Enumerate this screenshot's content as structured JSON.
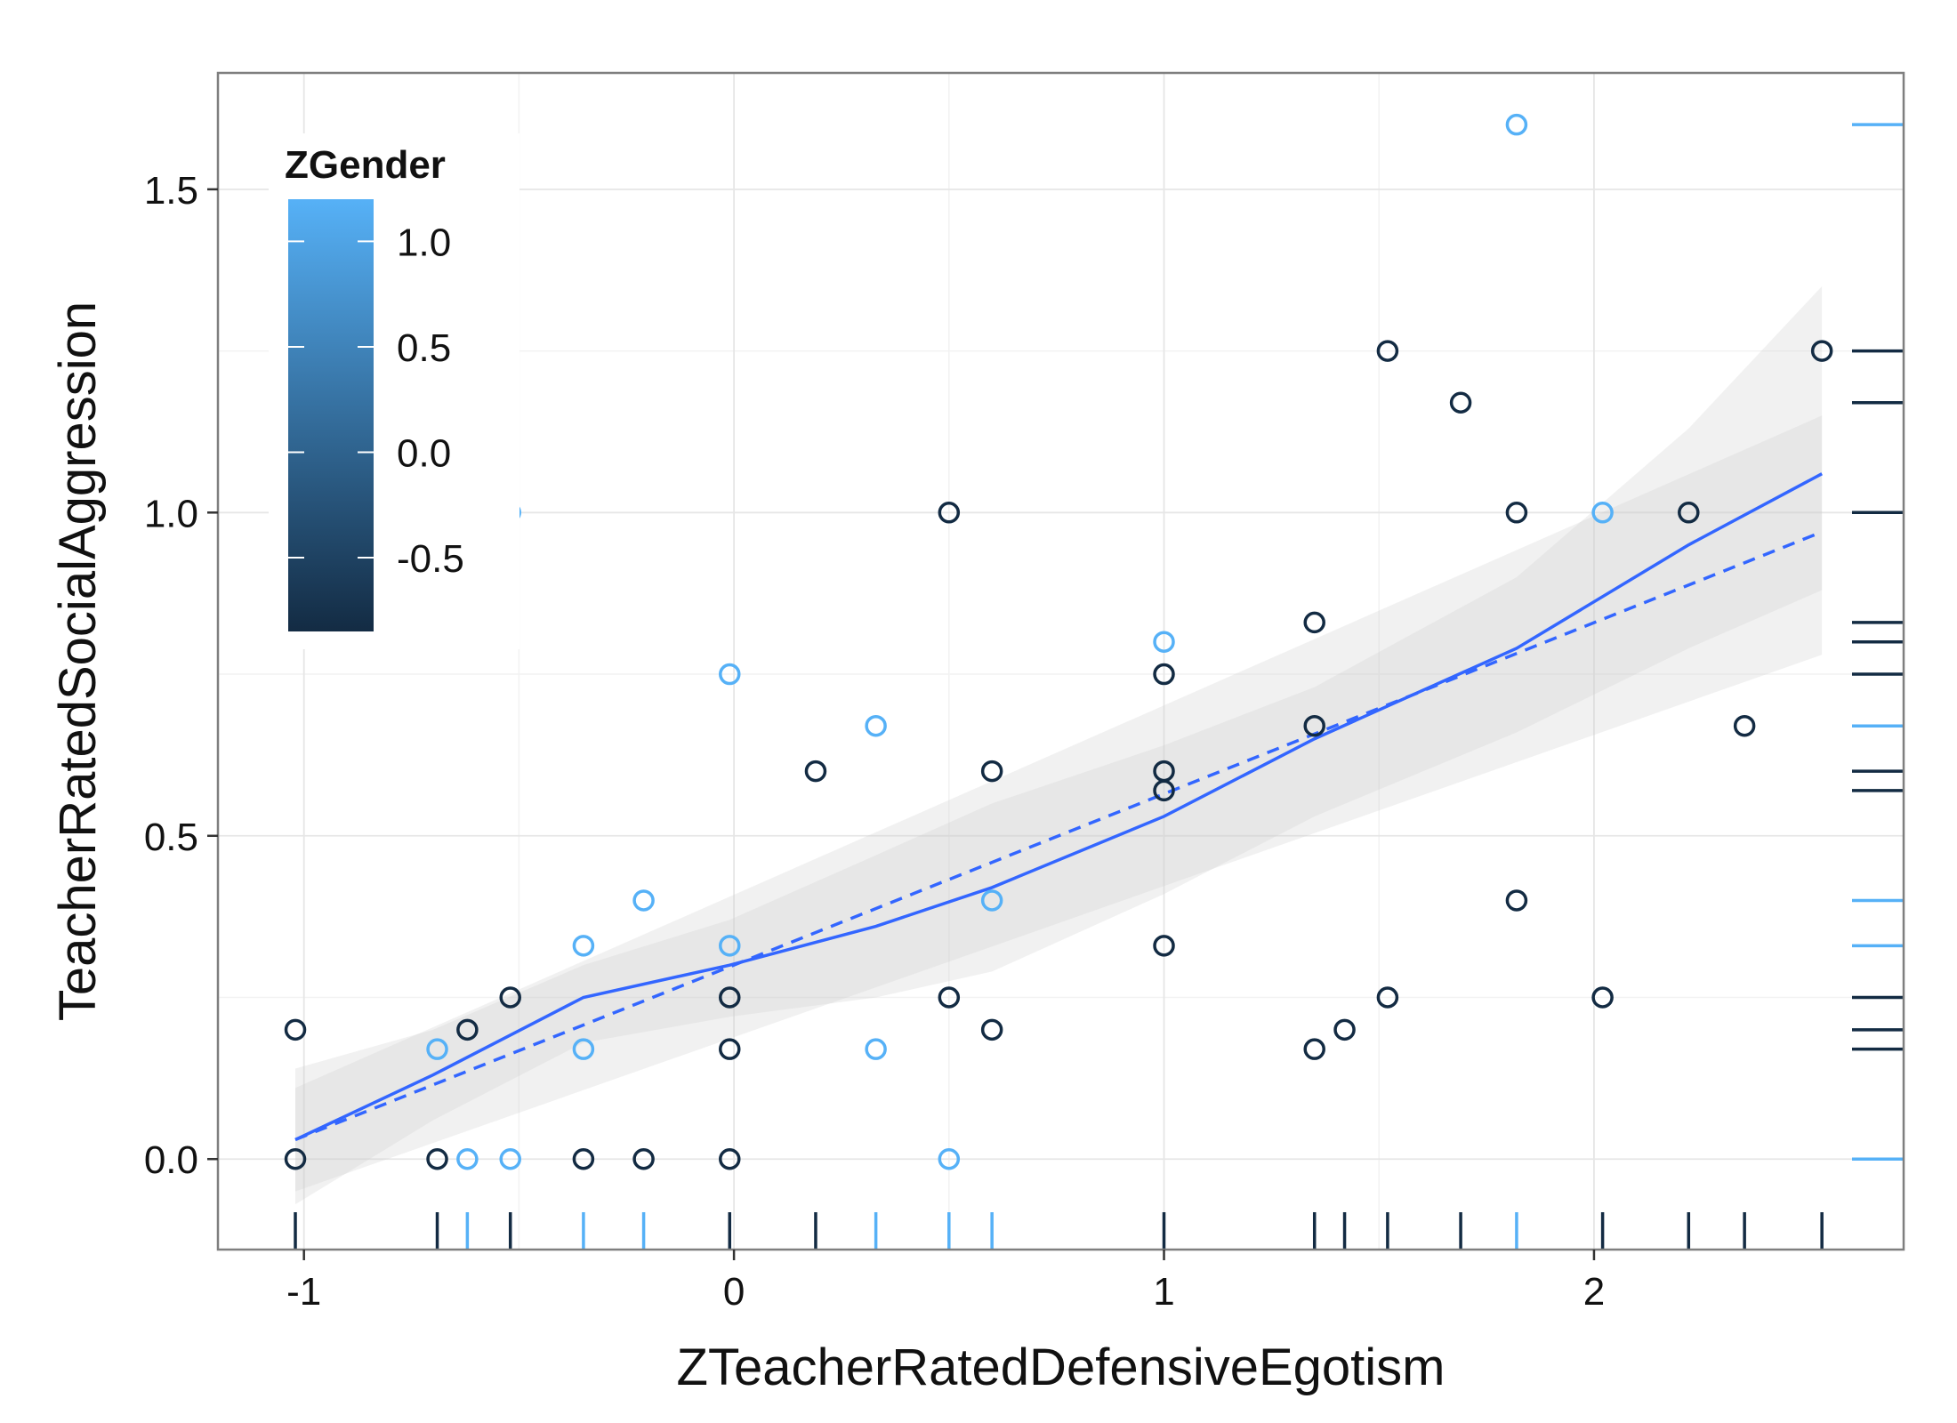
{
  "chart_data": {
    "type": "scatter",
    "title": "",
    "xlabel": "ZTeacherRatedDefensiveEgotism",
    "ylabel": "TeacherRatedSocialAggression",
    "xlim": [
      -1.2,
      2.72
    ],
    "ylim": [
      -0.14,
      1.68
    ],
    "grid": true,
    "x_ticks": [
      -1,
      0,
      1,
      2
    ],
    "x_tick_labels": [
      "-1",
      "0",
      "1",
      "2"
    ],
    "y_ticks": [
      0.0,
      0.5,
      1.0,
      1.5
    ],
    "y_tick_labels": [
      "0.0",
      "0.5",
      "1.0",
      "1.5"
    ],
    "legend": {
      "title": "ZGender",
      "placement": "top-left",
      "type": "colorbar",
      "range": [
        -0.85,
        1.2
      ],
      "breaks": [
        1.0,
        0.5,
        0.0,
        -0.5
      ],
      "break_labels": [
        "1.0",
        "0.5",
        "0.0",
        "-0.5"
      ],
      "low_color": "#132b43",
      "high_color": "#56b1f7"
    },
    "points": [
      {
        "x": -1.02,
        "y": 0.2,
        "z": -0.85
      },
      {
        "x": -1.02,
        "y": 0.0,
        "z": -0.85
      },
      {
        "x": -0.69,
        "y": 0.0,
        "z": -0.85
      },
      {
        "x": -0.69,
        "y": 0.17,
        "z": 1.2
      },
      {
        "x": -0.62,
        "y": 0.2,
        "z": -0.85
      },
      {
        "x": -0.62,
        "y": 0.0,
        "z": 1.2
      },
      {
        "x": -0.52,
        "y": 1.0,
        "z": 1.2
      },
      {
        "x": -0.52,
        "y": 0.25,
        "z": -0.85
      },
      {
        "x": -0.52,
        "y": 0.0,
        "z": 1.2
      },
      {
        "x": -0.35,
        "y": 0.33,
        "z": 1.2
      },
      {
        "x": -0.35,
        "y": 0.17,
        "z": 1.2
      },
      {
        "x": -0.35,
        "y": 0.0,
        "z": -0.85
      },
      {
        "x": -0.21,
        "y": 0.4,
        "z": 1.2
      },
      {
        "x": -0.21,
        "y": 0.0,
        "z": -0.85
      },
      {
        "x": -0.01,
        "y": 0.75,
        "z": 1.2
      },
      {
        "x": -0.01,
        "y": 0.33,
        "z": 1.2
      },
      {
        "x": -0.01,
        "y": 0.25,
        "z": -0.85
      },
      {
        "x": -0.01,
        "y": 0.17,
        "z": -0.85
      },
      {
        "x": -0.01,
        "y": 0.0,
        "z": -0.85
      },
      {
        "x": 0.19,
        "y": 0.6,
        "z": -0.85
      },
      {
        "x": 0.33,
        "y": 0.67,
        "z": 1.2
      },
      {
        "x": 0.33,
        "y": 0.17,
        "z": 1.2
      },
      {
        "x": 0.5,
        "y": 1.0,
        "z": -0.85
      },
      {
        "x": 0.5,
        "y": 0.25,
        "z": -0.85
      },
      {
        "x": 0.5,
        "y": 0.0,
        "z": 1.2
      },
      {
        "x": 0.6,
        "y": 0.6,
        "z": -0.85
      },
      {
        "x": 0.6,
        "y": 0.4,
        "z": 1.2
      },
      {
        "x": 0.6,
        "y": 0.2,
        "z": -0.85
      },
      {
        "x": 1.0,
        "y": 0.8,
        "z": 1.2
      },
      {
        "x": 1.0,
        "y": 0.75,
        "z": -0.85
      },
      {
        "x": 1.0,
        "y": 0.6,
        "z": -0.85
      },
      {
        "x": 1.0,
        "y": 0.57,
        "z": -0.85
      },
      {
        "x": 1.0,
        "y": 0.33,
        "z": -0.85
      },
      {
        "x": 1.35,
        "y": 0.83,
        "z": -0.85
      },
      {
        "x": 1.35,
        "y": 0.67,
        "z": -0.85
      },
      {
        "x": 1.35,
        "y": 0.17,
        "z": -0.85
      },
      {
        "x": 1.42,
        "y": 0.2,
        "z": -0.85
      },
      {
        "x": 1.52,
        "y": 1.25,
        "z": -0.85
      },
      {
        "x": 1.52,
        "y": 0.25,
        "z": -0.85
      },
      {
        "x": 1.69,
        "y": 1.17,
        "z": -0.85
      },
      {
        "x": 1.82,
        "y": 1.6,
        "z": 1.2
      },
      {
        "x": 1.82,
        "y": 1.0,
        "z": -0.85
      },
      {
        "x": 1.82,
        "y": 0.4,
        "z": -0.85
      },
      {
        "x": 2.02,
        "y": 1.0,
        "z": 1.2
      },
      {
        "x": 2.02,
        "y": 0.25,
        "z": -0.85
      },
      {
        "x": 2.22,
        "y": 1.0,
        "z": -0.85
      },
      {
        "x": 2.35,
        "y": 0.67,
        "z": -0.85
      },
      {
        "x": 2.53,
        "y": 1.25,
        "z": -0.85
      }
    ],
    "smooth_lines": [
      {
        "style": "solid",
        "x": [
          -1.02,
          -0.7,
          -0.35,
          -0.01,
          0.33,
          0.6,
          1.0,
          1.35,
          1.82,
          2.22,
          2.53
        ],
        "y": [
          0.03,
          0.13,
          0.25,
          0.3,
          0.36,
          0.42,
          0.53,
          0.65,
          0.79,
          0.95,
          1.06
        ]
      },
      {
        "style": "dashed",
        "x": [
          -1.02,
          2.53
        ],
        "y": [
          0.03,
          0.97
        ]
      }
    ],
    "confidence_bands": [
      {
        "x": [
          -1.02,
          -0.7,
          -0.35,
          -0.01,
          0.33,
          0.6,
          1.0,
          1.35,
          1.82,
          2.22,
          2.53
        ],
        "lower": [
          -0.07,
          0.06,
          0.18,
          0.22,
          0.25,
          0.29,
          0.41,
          0.53,
          0.66,
          0.79,
          0.88
        ],
        "upper": [
          0.14,
          0.2,
          0.3,
          0.37,
          0.47,
          0.55,
          0.64,
          0.73,
          0.9,
          1.13,
          1.35
        ]
      },
      {
        "x": [
          -1.02,
          2.53
        ],
        "lower_linear": [
          -0.05,
          0.78
        ],
        "upper_linear": [
          0.11,
          1.15
        ]
      }
    ],
    "rug_x": [
      {
        "x": -1.02,
        "z": -0.85
      },
      {
        "x": -0.69,
        "z": -0.85
      },
      {
        "x": -0.62,
        "z": 1.2
      },
      {
        "x": -0.52,
        "z": -0.85
      },
      {
        "x": -0.35,
        "z": 1.2
      },
      {
        "x": -0.21,
        "z": 1.2
      },
      {
        "x": -0.01,
        "z": -0.85
      },
      {
        "x": 0.19,
        "z": -0.85
      },
      {
        "x": 0.33,
        "z": 1.2
      },
      {
        "x": 0.5,
        "z": 1.2
      },
      {
        "x": 0.6,
        "z": 1.2
      },
      {
        "x": 1.0,
        "z": -0.85
      },
      {
        "x": 1.35,
        "z": -0.85
      },
      {
        "x": 1.42,
        "z": -0.85
      },
      {
        "x": 1.52,
        "z": -0.85
      },
      {
        "x": 1.69,
        "z": -0.85
      },
      {
        "x": 1.82,
        "z": 1.2
      },
      {
        "x": 2.02,
        "z": -0.85
      },
      {
        "x": 2.22,
        "z": -0.85
      },
      {
        "x": 2.35,
        "z": -0.85
      },
      {
        "x": 2.53,
        "z": -0.85
      }
    ],
    "rug_y": [
      {
        "y": 1.6,
        "z": 1.2
      },
      {
        "y": 1.25,
        "z": -0.85
      },
      {
        "y": 1.17,
        "z": -0.85
      },
      {
        "y": 1.0,
        "z": -0.85
      },
      {
        "y": 0.83,
        "z": -0.85
      },
      {
        "y": 0.8,
        "z": -0.85
      },
      {
        "y": 0.75,
        "z": -0.85
      },
      {
        "y": 0.67,
        "z": 1.2
      },
      {
        "y": 0.6,
        "z": -0.85
      },
      {
        "y": 0.57,
        "z": -0.85
      },
      {
        "y": 0.4,
        "z": 1.2
      },
      {
        "y": 0.33,
        "z": 1.2
      },
      {
        "y": 0.25,
        "z": -0.85
      },
      {
        "y": 0.2,
        "z": -0.85
      },
      {
        "y": 0.17,
        "z": -0.85
      },
      {
        "y": 0.0,
        "z": 1.2
      }
    ],
    "colors": {
      "line": "#3366ff",
      "band": "#cccccc",
      "grid": "#e6e6e6",
      "frame": "#7f7f7f"
    }
  }
}
